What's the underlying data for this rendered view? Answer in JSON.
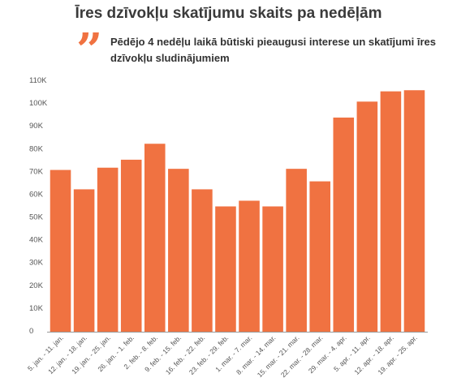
{
  "header": {
    "title": "Īres dzīvokļu skatījumu skaits pa nedēļām",
    "subtitle": "Pēdējo 4 nedēļu laikā būtiski pieaugusi interese un skatījumi īres dzīvokļu sludinājumiem",
    "quote_icon": "quote-icon"
  },
  "chart_data": {
    "type": "bar",
    "categories": [
      "5. jan. - 11. jan.",
      "12. jan. - 18. jan.",
      "19. jan. - 25. jan.",
      "26. jan. - 1. feb.",
      "2. feb. - 8. feb.",
      "9. feb. - 15. feb.",
      "16. feb. - 22. feb.",
      "23. feb. - 29. feb.",
      "1. mar. - 7. mar.",
      "8. mar. - 14. mar.",
      "15. mar. - 21. mar.",
      "22. mar. - 28. mar.",
      "29. mar. - 4. apr.",
      "5. apr. - 11. apr.",
      "12. apr. - 18. apr.",
      "19. apr. - 25. apr."
    ],
    "values": [
      71000,
      62500,
      72000,
      75500,
      82500,
      71500,
      62500,
      55000,
      57500,
      55000,
      71500,
      66000,
      94000,
      101000,
      105500,
      106000
    ],
    "yticks": [
      "0",
      "10K",
      "20K",
      "30K",
      "40K",
      "50K",
      "60K",
      "70K",
      "80K",
      "90K",
      "100K",
      "110K"
    ],
    "ylim": [
      0,
      110000
    ],
    "grid": false,
    "bar_color": "#f07241",
    "title": "",
    "xlabel": "",
    "ylabel": ""
  }
}
